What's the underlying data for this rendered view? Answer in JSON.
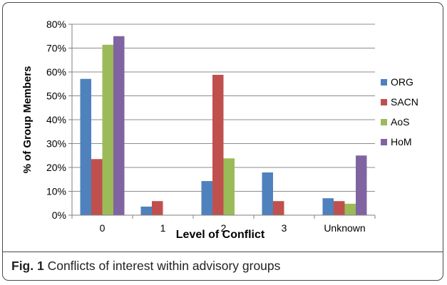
{
  "caption": {
    "label": "Fig. 1",
    "text": "Conflicts of interest within advisory groups"
  },
  "chart_data": {
    "type": "bar",
    "title": "",
    "xlabel": "Level of Conflict",
    "ylabel": "% of Group Members",
    "categories": [
      "0",
      "1",
      "2",
      "3",
      "Unknown"
    ],
    "ylim": [
      0,
      80
    ],
    "yticks": [
      0,
      10,
      20,
      30,
      40,
      50,
      60,
      70,
      80
    ],
    "ytick_labels": [
      "0%",
      "10%",
      "20%",
      "30%",
      "40%",
      "50%",
      "60%",
      "70%",
      "80%"
    ],
    "grid": true,
    "legend_position": "right",
    "series": [
      {
        "name": "ORG",
        "color": "#4f81bd",
        "values": [
          57.1,
          3.6,
          14.3,
          17.9,
          7.1
        ]
      },
      {
        "name": "SACN",
        "color": "#c0504d",
        "values": [
          23.5,
          5.9,
          58.8,
          5.9,
          5.9
        ]
      },
      {
        "name": "AoS",
        "color": "#9bbb59",
        "values": [
          71.4,
          0,
          23.8,
          0,
          4.8
        ]
      },
      {
        "name": "HoM",
        "color": "#8064a2",
        "values": [
          75,
          0,
          0,
          0,
          25
        ]
      }
    ]
  }
}
